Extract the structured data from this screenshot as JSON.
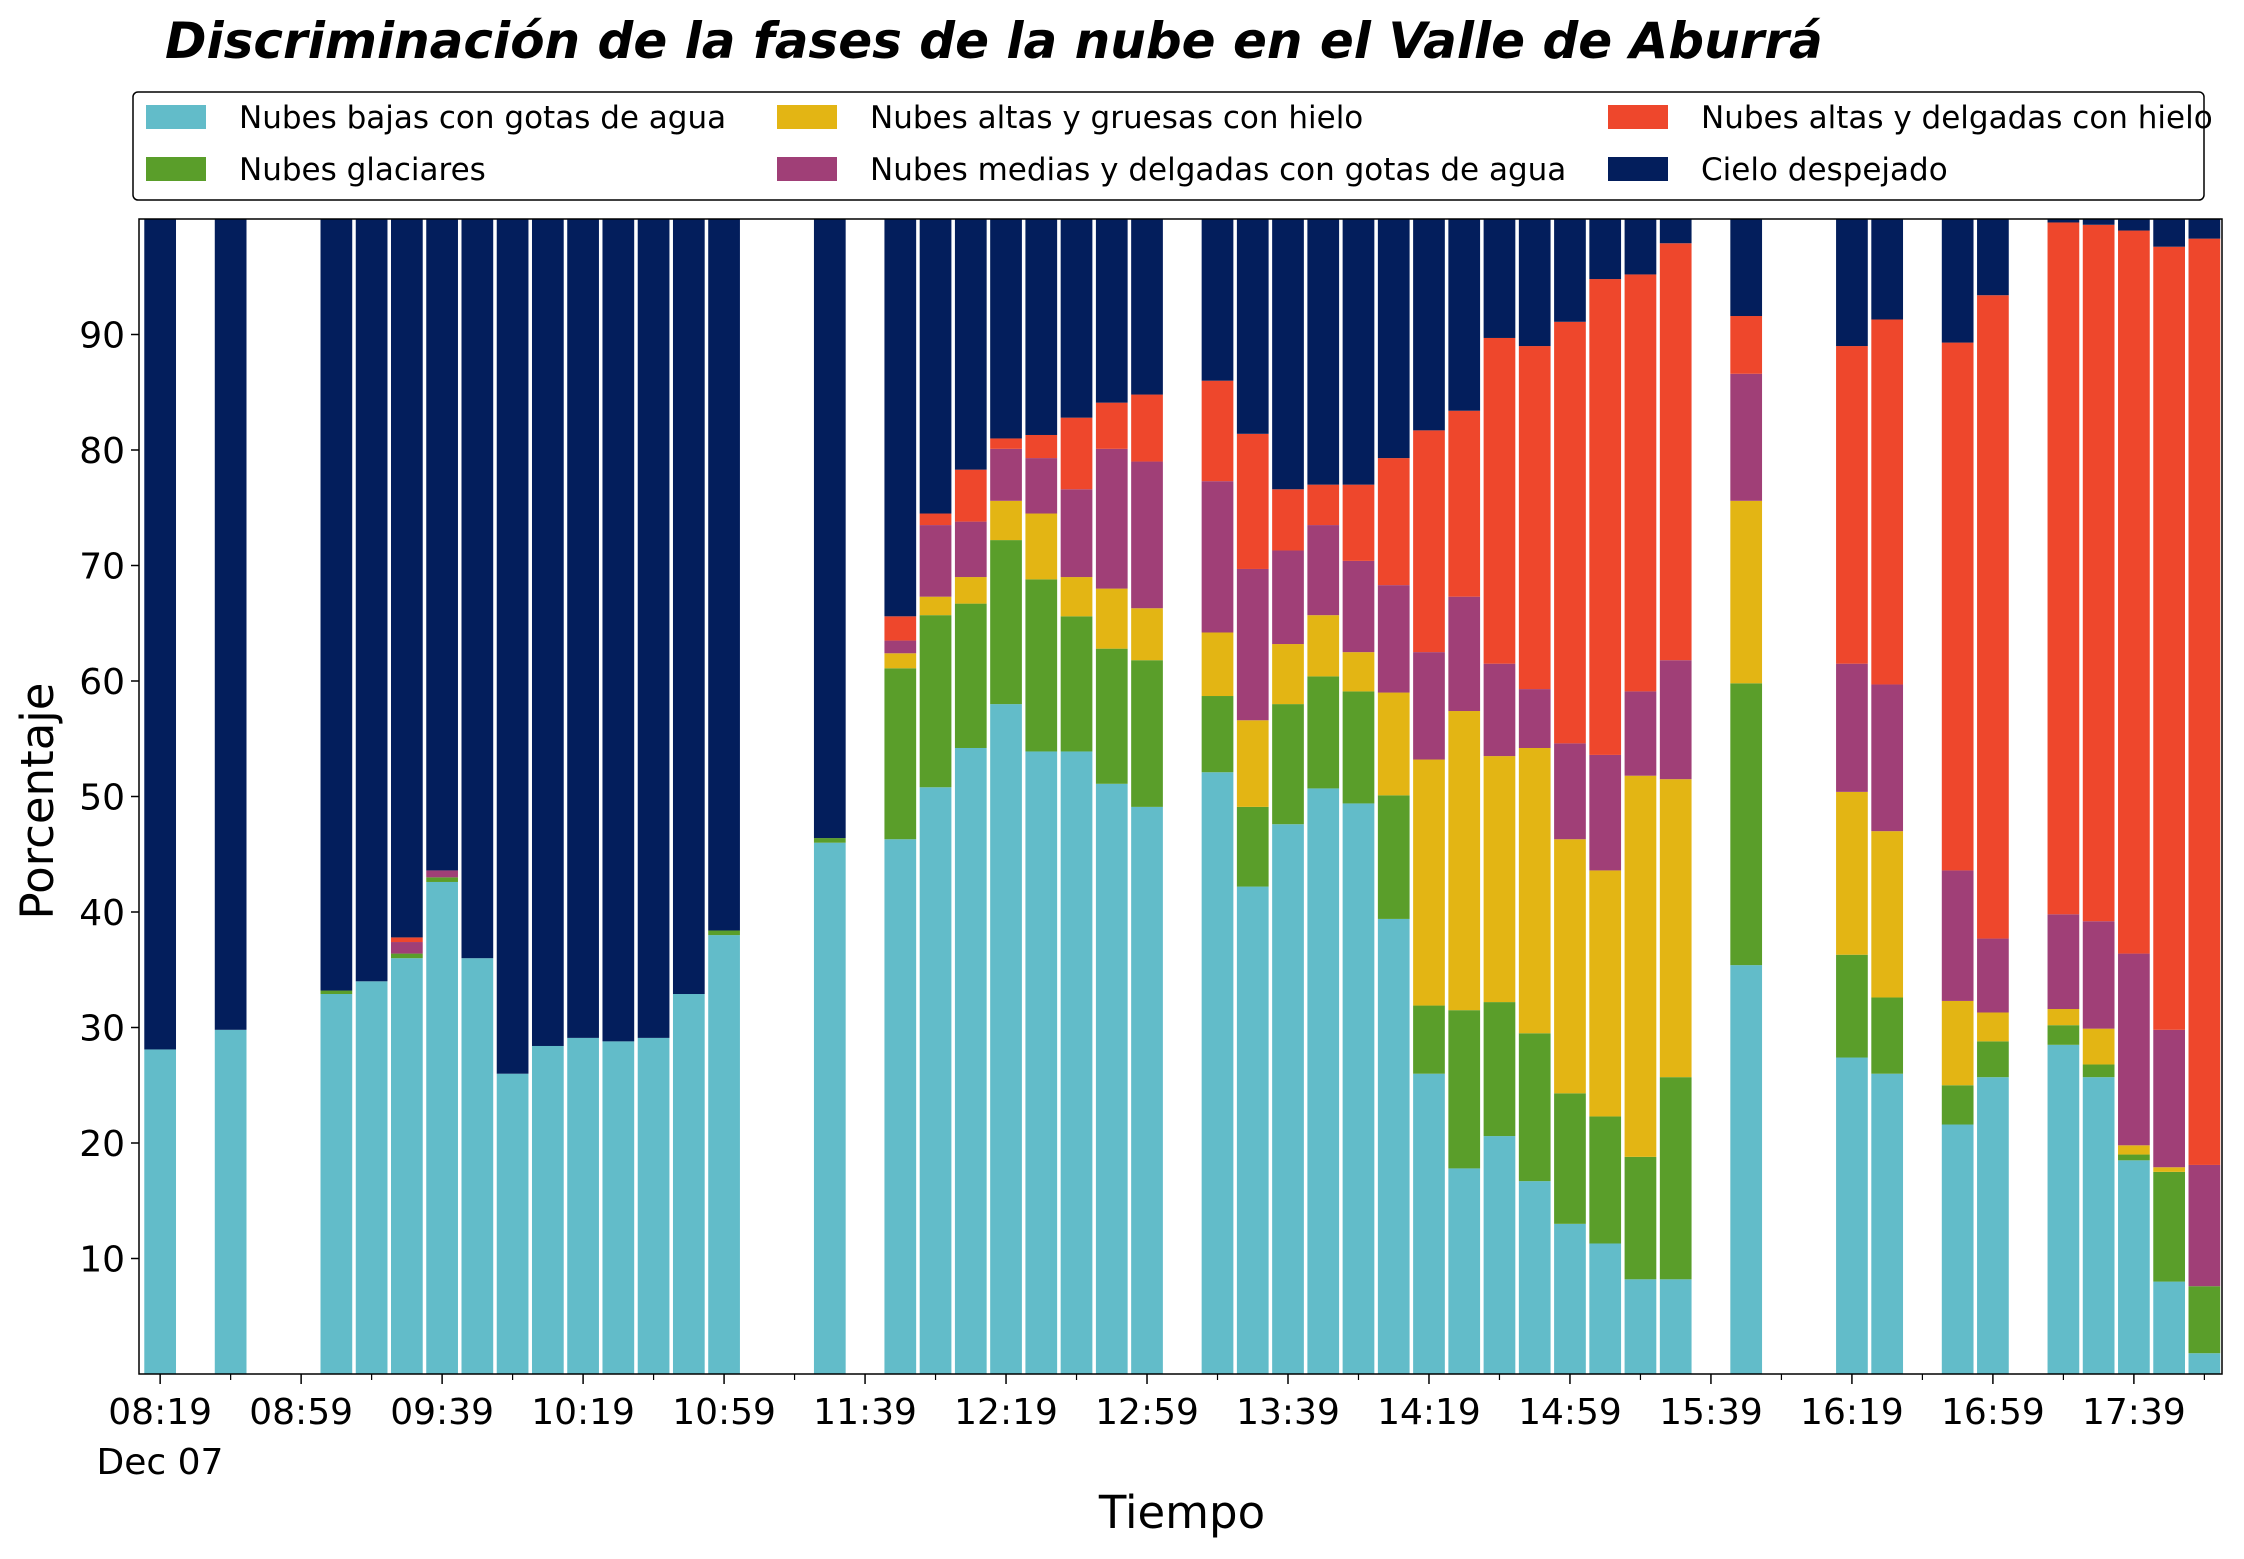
{
  "chart_data": {
    "type": "bar",
    "stacked": true,
    "title": "Discriminación de la fases de la nube en el Valle de Aburrá",
    "xlabel": "Tiempo",
    "ylabel": "Porcentaje",
    "x_date_label": "Dec 07",
    "x": [
      "08:19",
      "08:39",
      "09:09",
      "09:19",
      "09:29",
      "09:39",
      "09:49",
      "09:59",
      "10:09",
      "10:19",
      "10:29",
      "10:39",
      "10:49",
      "10:59",
      "11:29",
      "11:49",
      "11:59",
      "12:09",
      "12:19",
      "12:29",
      "12:39",
      "12:49",
      "12:59",
      "13:19",
      "13:29",
      "13:39",
      "13:49",
      "13:59",
      "14:09",
      "14:19",
      "14:29",
      "14:39",
      "14:49",
      "14:59",
      "15:09",
      "15:19",
      "15:29",
      "15:49",
      "16:19",
      "16:29",
      "16:49",
      "16:59",
      "17:19",
      "17:29",
      "17:39",
      "17:49",
      "17:59"
    ],
    "series": [
      {
        "name": "Nubes bajas con gotas de agua",
        "color": "#62bcc9",
        "values": [
          28.1,
          29.8,
          32.9,
          34.0,
          36.0,
          42.6,
          36.0,
          26.0,
          28.4,
          29.1,
          28.8,
          29.1,
          32.9,
          38.0,
          46.0,
          46.3,
          50.8,
          54.2,
          58.0,
          53.9,
          53.9,
          51.1,
          49.1,
          52.1,
          42.2,
          47.6,
          50.7,
          49.4,
          39.4,
          26.0,
          17.8,
          20.6,
          16.7,
          13.0,
          11.3,
          8.2,
          8.2,
          35.4,
          27.4,
          26.0,
          21.6,
          25.7,
          28.5,
          25.7,
          18.5,
          8.0,
          1.8
        ]
      },
      {
        "name": "Nubes glaciares",
        "color": "#5a9e2a",
        "values": [
          0,
          0,
          0.3,
          0,
          0.4,
          0.4,
          0,
          0,
          0,
          0,
          0,
          0,
          0,
          0.4,
          0.4,
          14.8,
          14.9,
          12.5,
          14.2,
          14.9,
          11.7,
          11.7,
          12.7,
          6.6,
          6.9,
          10.4,
          9.7,
          9.7,
          10.7,
          5.9,
          13.7,
          11.6,
          12.8,
          11.3,
          11.0,
          10.6,
          17.5,
          24.4,
          8.9,
          6.6,
          3.4,
          3.1,
          1.7,
          1.1,
          0.5,
          9.5,
          5.8
        ]
      },
      {
        "name": "Nubes altas y gruesas con hielo",
        "color": "#e3b514",
        "values": [
          0,
          0,
          0,
          0,
          0,
          0,
          0,
          0,
          0,
          0,
          0,
          0,
          0,
          0,
          0,
          1.3,
          1.6,
          2.3,
          3.4,
          5.7,
          3.4,
          5.2,
          4.5,
          5.5,
          7.5,
          5.2,
          5.3,
          3.4,
          8.9,
          21.3,
          25.9,
          21.3,
          24.7,
          22.0,
          21.3,
          33.0,
          25.8,
          15.8,
          14.1,
          14.4,
          7.3,
          2.5,
          1.4,
          3.1,
          0.8,
          0.4,
          0
        ]
      },
      {
        "name": "Nubes medias y delgadas con gotas de agua",
        "color": "#a03f77",
        "values": [
          0,
          0,
          0,
          0,
          1.0,
          0.6,
          0,
          0,
          0,
          0,
          0,
          0,
          0,
          0,
          0,
          1.1,
          6.2,
          4.8,
          4.5,
          4.8,
          7.6,
          12.1,
          12.7,
          13.1,
          13.1,
          8.1,
          7.8,
          7.9,
          9.3,
          9.3,
          9.9,
          8.0,
          5.1,
          8.3,
          10.0,
          7.3,
          10.3,
          11.0,
          11.1,
          12.7,
          11.3,
          6.4,
          8.2,
          9.3,
          16.6,
          11.9,
          10.5
        ]
      },
      {
        "name": "Nubes altas y delgadas con hielo",
        "color": "#ee472c",
        "values": [
          0,
          0,
          0,
          0,
          0.4,
          0,
          0,
          0,
          0,
          0,
          0,
          0,
          0,
          0,
          0,
          2.1,
          1.0,
          4.5,
          0.9,
          2.0,
          6.2,
          4.0,
          5.8,
          8.7,
          11.7,
          5.3,
          3.5,
          6.6,
          11.0,
          19.2,
          16.1,
          28.2,
          29.7,
          36.5,
          41.2,
          36.1,
          36.1,
          5.0,
          27.5,
          31.6,
          45.7,
          55.7,
          59.9,
          60.3,
          62.6,
          67.8,
          80.2
        ]
      },
      {
        "name": "Cielo despejado",
        "color": "#031e5c",
        "values": [
          71.9,
          70.2,
          66.8,
          66.0,
          62.2,
          56.4,
          64.0,
          74.0,
          71.6,
          70.9,
          71.2,
          70.9,
          67.1,
          61.6,
          53.6,
          34.4,
          25.5,
          21.7,
          19.0,
          18.7,
          17.2,
          15.9,
          15.2,
          14.0,
          18.6,
          23.4,
          23.0,
          23.0,
          20.7,
          18.3,
          16.6,
          10.3,
          11.0,
          8.9,
          5.2,
          4.8,
          2.1,
          8.4,
          11.0,
          8.7,
          10.7,
          6.6,
          0.3,
          0.5,
          1.0,
          2.4,
          1.7
        ]
      }
    ],
    "xlim": [
      "08:13",
      "18:04"
    ],
    "xticks": [
      "08:19",
      "08:59",
      "09:39",
      "10:19",
      "10:59",
      "11:39",
      "12:19",
      "12:59",
      "13:39",
      "14:19",
      "14:59",
      "15:39",
      "16:19",
      "16:59",
      "17:39"
    ],
    "xminorticks": [
      "08:39",
      "09:19",
      "09:59",
      "10:39",
      "11:19",
      "11:59",
      "12:39",
      "13:19",
      "13:59",
      "14:39",
      "15:19",
      "15:59",
      "16:39",
      "17:19",
      "17:59"
    ],
    "ylim": [
      0,
      100
    ],
    "yticks": [
      10,
      20,
      30,
      40,
      50,
      60,
      70,
      80,
      90
    ],
    "legend": "top",
    "legend_columns": 3
  }
}
